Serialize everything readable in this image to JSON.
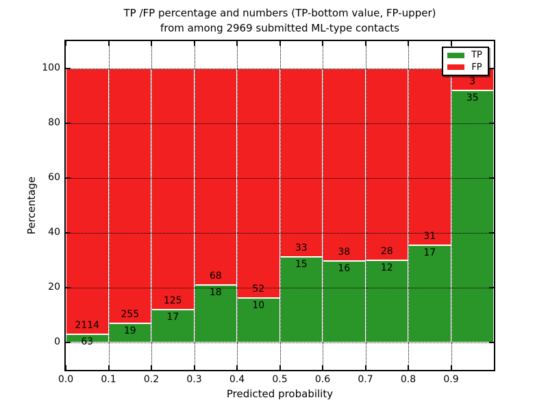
{
  "chart": {
    "title_line1": "TP /FP percentage and numbers (TP-bottom value, FP-upper)",
    "title_line2": "from among 2969 submitted ML-type contacts",
    "xlabel": "Predicted probability",
    "ylabel": "Percentage"
  },
  "chart_data": {
    "type": "bar",
    "subtype": "stacked-100-percent",
    "title": "TP /FP percentage and numbers (TP-bottom value, FP-upper) from among 2969 submitted ML-type contacts",
    "xlabel": "Predicted probability",
    "ylabel": "Percentage",
    "total_contacts": 2969,
    "x_bins": [
      0.0,
      0.1,
      0.2,
      0.3,
      0.4,
      0.5,
      0.6,
      0.7,
      0.8,
      0.9
    ],
    "bin_width": 0.1,
    "series": [
      {
        "name": "TP",
        "color": "#2a9528",
        "counts": [
          63,
          19,
          17,
          18,
          10,
          15,
          16,
          12,
          17,
          35
        ]
      },
      {
        "name": "FP",
        "color": "#f22020",
        "counts": [
          2114,
          255,
          125,
          68,
          52,
          33,
          38,
          28,
          31,
          3
        ]
      }
    ],
    "tp_percent": [
      2.9,
      6.9,
      12.0,
      20.9,
      16.1,
      31.3,
      29.6,
      30.0,
      35.4,
      92.1
    ],
    "xticks": [
      "0.0",
      "0.1",
      "0.2",
      "0.3",
      "0.4",
      "0.5",
      "0.6",
      "0.7",
      "0.8",
      "0.9"
    ],
    "yticks": [
      0,
      20,
      40,
      60,
      80,
      100
    ],
    "xlim": [
      0,
      1
    ],
    "ylim": [
      -10,
      110
    ],
    "grid": "dotted, both axes",
    "legend_position": "upper right"
  }
}
